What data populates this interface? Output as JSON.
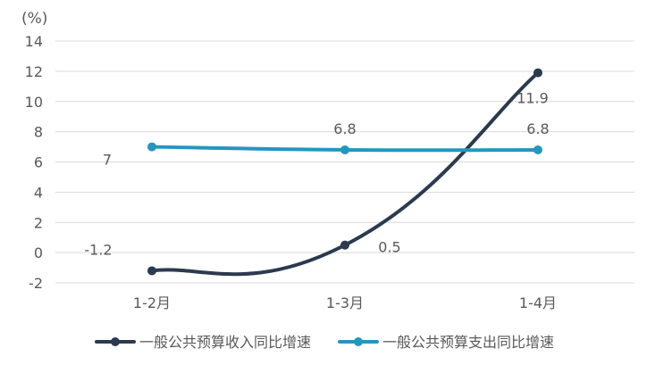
{
  "chart_data": {
    "type": "line",
    "unit_label": "(%)",
    "categories": [
      "1-2月",
      "1-3月",
      "1-4月"
    ],
    "ylim": [
      -2,
      14
    ],
    "yticks": [
      -2,
      0,
      2,
      4,
      6,
      8,
      10,
      12,
      14
    ],
    "grid": true,
    "legend_position": "bottom",
    "series": [
      {
        "name": "一般公共预算收入同比增速",
        "values": [
          -1.2,
          0.5,
          11.9
        ],
        "labels": [
          "-1.2",
          "0.5",
          "11.9"
        ],
        "color": "#2b3a4f",
        "smooth": true
      },
      {
        "name": "一般公共预算支出同比增速",
        "values": [
          7,
          6.8,
          6.8
        ],
        "labels": [
          "7",
          "6.8",
          "6.8"
        ],
        "color": "#2596be",
        "smooth": true
      }
    ]
  }
}
